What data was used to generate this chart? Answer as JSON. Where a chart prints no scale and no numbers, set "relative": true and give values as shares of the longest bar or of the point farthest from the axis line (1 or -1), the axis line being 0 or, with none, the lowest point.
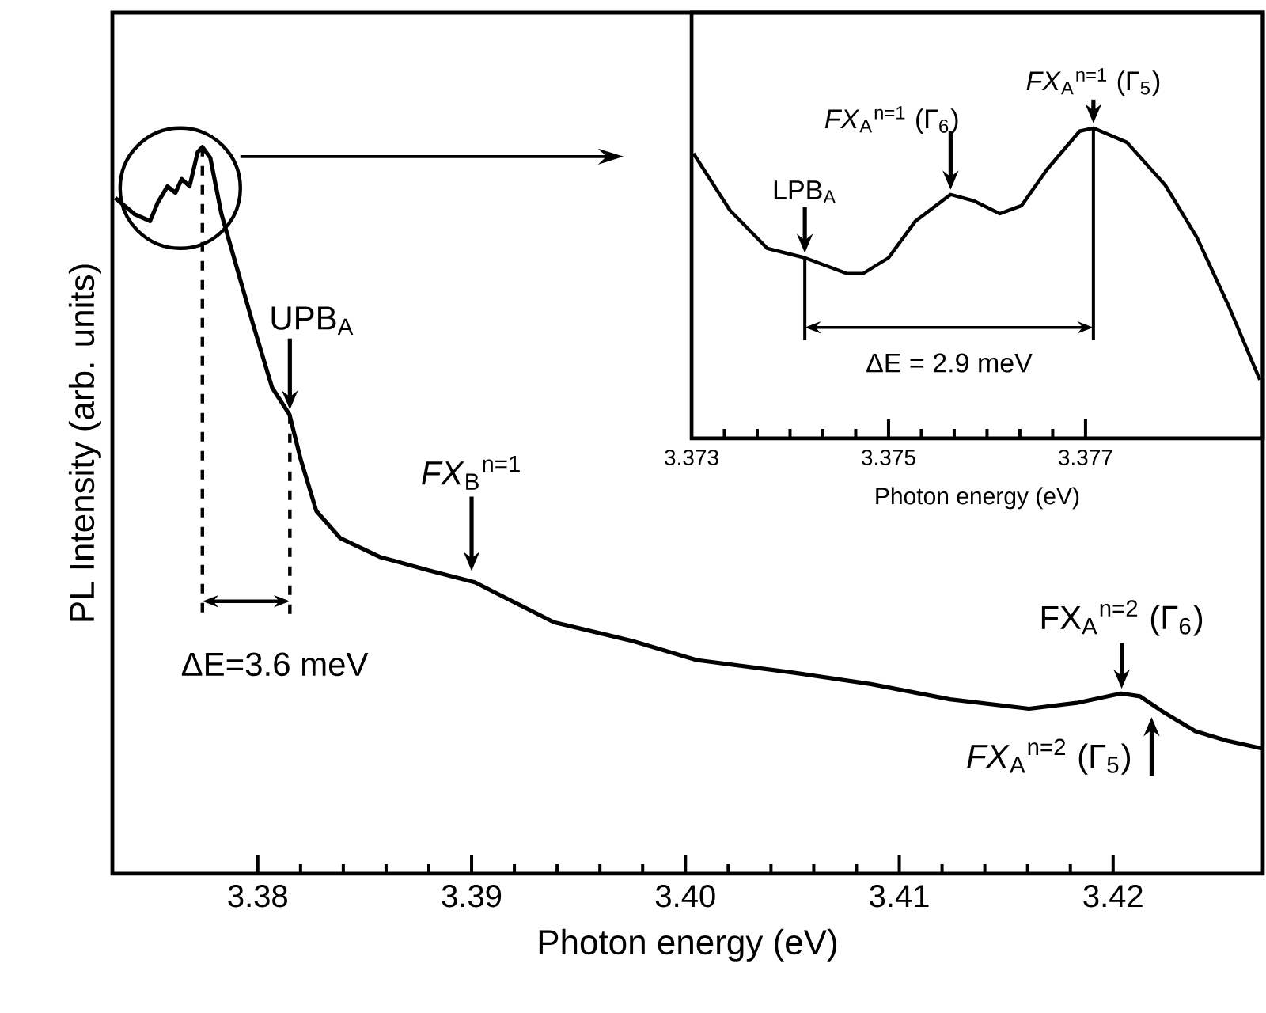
{
  "chart_data": [
    {
      "type": "line",
      "relative": true,
      "xlabel": "Photon energy (eV)",
      "ylabel": "PL Intensity (arb. units)",
      "color": "#000000",
      "xlim": [
        3.3732,
        3.427
      ],
      "xticks": [
        3.38,
        3.39,
        {
          "value": 3.4,
          "label": "3.40"
        },
        3.41,
        3.42
      ],
      "x": [
        3.37333,
        3.37422,
        3.37496,
        3.37533,
        3.37578,
        3.37615,
        3.37644,
        3.37681,
        3.37719,
        3.37741,
        3.37778,
        3.3783,
        3.37904,
        3.37978,
        3.38067,
        3.38148,
        3.382,
        3.38274,
        3.38385,
        3.3857,
        3.38793,
        3.39015,
        3.39163,
        3.39385,
        3.39756,
        3.40052,
        3.40496,
        3.40867,
        3.41237,
        3.41607,
        3.4183,
        3.42037,
        3.42126,
        3.42237,
        3.42385,
        3.42533,
        3.427
      ],
      "values": [
        0.93,
        0.908,
        0.898,
        0.924,
        0.946,
        0.937,
        0.956,
        0.946,
        0.993,
        1,
        0.985,
        0.908,
        0.832,
        0.756,
        0.669,
        0.632,
        0.571,
        0.499,
        0.462,
        0.436,
        0.418,
        0.401,
        0.379,
        0.346,
        0.32,
        0.294,
        0.277,
        0.261,
        0.24,
        0.227,
        0.235,
        0.248,
        0.244,
        0.222,
        0.196,
        0.183,
        0.172
      ],
      "annotations": [
        {
          "text": "UPB$_{A}$",
          "x": 3.3815,
          "y": 0.632
        },
        {
          "text": "*FX*$_{B}$$^{n=1}$",
          "x": 3.39,
          "y": 0.41
        },
        "ΔE=3.6 meV",
        {
          "text": "FX$_{A}$$^{n=2}$ (Γ$_{6}$)",
          "x": 3.4204,
          "y": 0.248
        },
        {
          "text": "*FX*$_{A}$$^{n=2}$ (Γ$_{5}$)",
          "x": 3.4218,
          "y": 0.222
        }
      ]
    },
    {
      "type": "line",
      "relative": true,
      "xlabel": "Photon energy (eV)",
      "color": "#000000",
      "xlim": [
        3.373,
        3.3788
      ],
      "xticks": [
        3.373,
        3.375,
        3.377
      ],
      "x": [
        3.37302,
        3.37339,
        3.37377,
        3.37415,
        3.37458,
        3.37474,
        3.375,
        3.37527,
        3.37563,
        3.37587,
        3.37613,
        3.37635,
        3.37661,
        3.37694,
        3.37708,
        3.37742,
        3.37781,
        3.37813,
        3.37845,
        3.37877
      ],
      "values": [
        0.918,
        0.735,
        0.612,
        0.582,
        0.531,
        0.531,
        0.582,
        0.699,
        0.786,
        0.765,
        0.724,
        0.75,
        0.867,
        0.99,
        1,
        0.954,
        0.816,
        0.648,
        0.429,
        0.189
      ],
      "annotations": [
        {
          "text": "LPB$_{A}$",
          "x": 3.37415,
          "y": 0.582
        },
        {
          "text": "*FX*$_{A}$$^{n=1}$ (Γ$_{6}$)",
          "x": 3.37563,
          "y": 0.786
        },
        {
          "text": "*FX*$_{A}$$^{n=1}$ (Γ$_{5}$)",
          "x": 3.37708,
          "y": 1
        },
        "ΔE = 2.9 meV"
      ]
    }
  ]
}
